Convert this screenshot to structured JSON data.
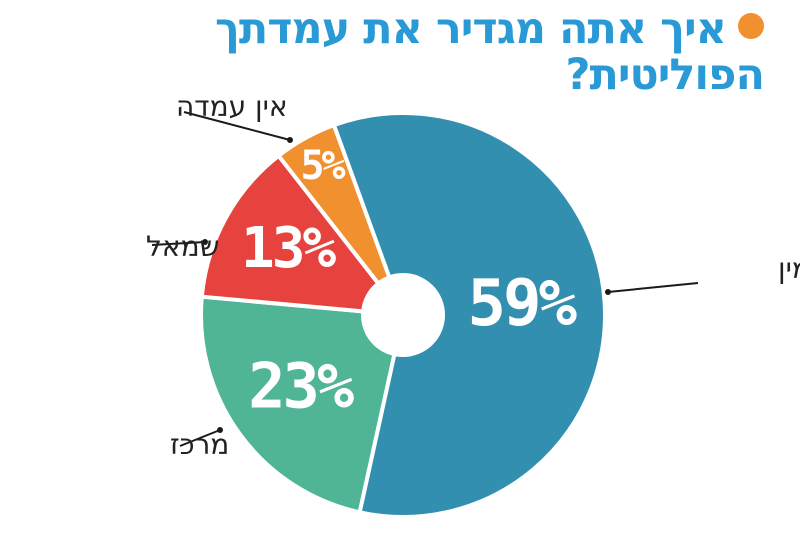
{
  "title": "איך אתה מגדיר את עמדתך הפוליטית?",
  "colors": {
    "title": "#2a9ad6",
    "accent_dot": "#f1902f",
    "leader_line": "#1a1a1a"
  },
  "chart_data": {
    "type": "pie",
    "title": "איך אתה מגדיר את עמדתך הפוליטית?",
    "donut_hole": true,
    "slices": [
      {
        "label": "ימין",
        "value": 59,
        "display": "59%",
        "color": "#338fb0"
      },
      {
        "label": "מרכז",
        "value": 23,
        "display": "23%",
        "color": "#4fb596"
      },
      {
        "label": "שמאל",
        "value": 13,
        "display": "13%",
        "color": "#e6433e"
      },
      {
        "label": "אין עמדה",
        "value": 5,
        "display": "5%",
        "color": "#f1902f"
      }
    ]
  }
}
